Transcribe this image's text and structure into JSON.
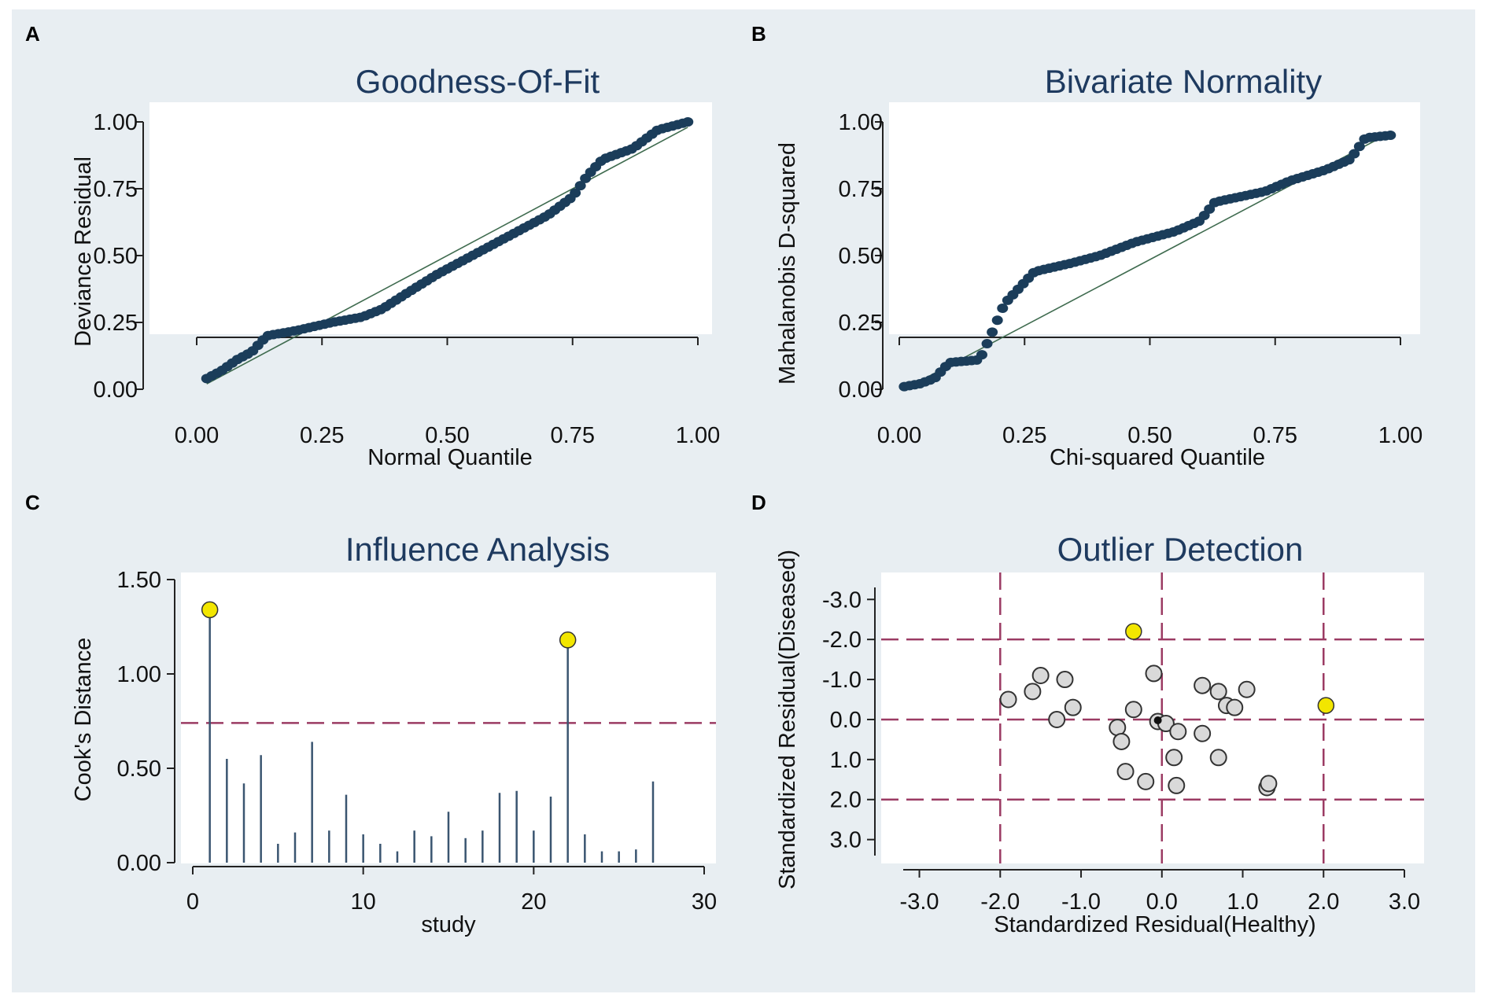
{
  "figure": {
    "background": "#e8eef2",
    "plot_background": "#ffffff",
    "colors": {
      "marker": "#1b3d5a",
      "fit_line": "#3f6b4f",
      "ref_line": "#9b3b63",
      "stem": "#3a5570",
      "highlight": "#f2e600",
      "hollow_fill": "#d9d9d9",
      "title": "#1e3a5f"
    }
  },
  "chart_data": [
    {
      "panel": "A",
      "type": "scatter",
      "title": "Goodness-Of-Fit",
      "xlabel": "Normal Quantile",
      "ylabel": "Deviance Residual",
      "xlim": [
        0,
        1
      ],
      "ylim": [
        0,
        1
      ],
      "xticks": [
        "0.00",
        "0.25",
        "0.50",
        "0.75",
        "1.00"
      ],
      "yticks": [
        "0.00",
        "0.25",
        "0.50",
        "0.75",
        "1.00"
      ],
      "xtick_values": [
        0,
        0.25,
        0.5,
        0.75,
        1
      ],
      "ytick_values": [
        0,
        0.25,
        0.5,
        0.75,
        1
      ],
      "fit_line": [
        [
          0.02,
          0.02
        ],
        [
          0.98,
          0.98
        ]
      ],
      "profile": [
        [
          0.02,
          0.04
        ],
        [
          0.05,
          0.07
        ],
        [
          0.08,
          0.11
        ],
        [
          0.11,
          0.14
        ],
        [
          0.14,
          0.2
        ],
        [
          0.2,
          0.22
        ],
        [
          0.27,
          0.25
        ],
        [
          0.33,
          0.27
        ],
        [
          0.37,
          0.3
        ],
        [
          0.42,
          0.36
        ],
        [
          0.48,
          0.43
        ],
        [
          0.56,
          0.51
        ],
        [
          0.63,
          0.58
        ],
        [
          0.7,
          0.65
        ],
        [
          0.75,
          0.72
        ],
        [
          0.78,
          0.8
        ],
        [
          0.81,
          0.86
        ],
        [
          0.87,
          0.9
        ],
        [
          0.92,
          0.97
        ],
        [
          0.98,
          1.0
        ]
      ],
      "n_points": 95
    },
    {
      "panel": "B",
      "type": "scatter",
      "title": "Bivariate Normality",
      "xlabel": "Chi-squared Quantile",
      "ylabel": "Mahalanobis D-squared",
      "xlim": [
        0,
        1
      ],
      "ylim": [
        0,
        1
      ],
      "xticks": [
        "0.00",
        "0.25",
        "0.50",
        "0.75",
        "1.00"
      ],
      "yticks": [
        "0.00",
        "0.25",
        "0.50",
        "0.75",
        "1.00"
      ],
      "xtick_values": [
        0,
        0.25,
        0.5,
        0.75,
        1
      ],
      "ytick_values": [
        0,
        0.25,
        0.5,
        0.75,
        1
      ],
      "fit_line": [
        [
          0.02,
          0.01
        ],
        [
          0.97,
          0.95
        ]
      ],
      "profile": [
        [
          0.01,
          0.01
        ],
        [
          0.04,
          0.02
        ],
        [
          0.07,
          0.04
        ],
        [
          0.1,
          0.1
        ],
        [
          0.16,
          0.11
        ],
        [
          0.18,
          0.19
        ],
        [
          0.21,
          0.32
        ],
        [
          0.27,
          0.44
        ],
        [
          0.34,
          0.47
        ],
        [
          0.4,
          0.5
        ],
        [
          0.47,
          0.55
        ],
        [
          0.55,
          0.59
        ],
        [
          0.6,
          0.63
        ],
        [
          0.63,
          0.7
        ],
        [
          0.73,
          0.74
        ],
        [
          0.78,
          0.78
        ],
        [
          0.85,
          0.82
        ],
        [
          0.9,
          0.86
        ],
        [
          0.93,
          0.94
        ],
        [
          0.98,
          0.95
        ]
      ],
      "n_points": 95
    },
    {
      "panel": "C",
      "type": "stem",
      "title": "Influence Analysis",
      "xlabel": "study",
      "ylabel": "Cook's Distance",
      "xlim": [
        0,
        30
      ],
      "ylim": [
        0,
        1.5
      ],
      "xticks": [
        "0",
        "10",
        "20",
        "30"
      ],
      "yticks": [
        "0.00",
        "0.50",
        "1.00",
        "1.50"
      ],
      "xtick_values": [
        0,
        10,
        20,
        30
      ],
      "ytick_values": [
        0,
        0.5,
        1,
        1.5
      ],
      "threshold": 0.74,
      "studies": [
        1,
        2,
        3,
        4,
        5,
        6,
        7,
        8,
        9,
        10,
        11,
        12,
        13,
        14,
        15,
        16,
        17,
        18,
        19,
        20,
        21,
        22,
        23,
        24,
        25,
        26,
        27
      ],
      "values": [
        1.34,
        0.55,
        0.42,
        0.57,
        0.1,
        0.16,
        0.64,
        0.17,
        0.36,
        0.15,
        0.1,
        0.06,
        0.17,
        0.14,
        0.27,
        0.13,
        0.17,
        0.37,
        0.38,
        0.17,
        0.35,
        1.18,
        0.15,
        0.06,
        0.06,
        0.07,
        0.43
      ],
      "highlighted": [
        1,
        22
      ]
    },
    {
      "panel": "D",
      "type": "scatter",
      "title": "Outlier Detection",
      "xlabel": "Standardized Residual(Healthy)",
      "ylabel": "Standardized Residual(Diseased)",
      "xlim": [
        -3.2,
        3.0
      ],
      "ylim": [
        -3.3,
        3.4
      ],
      "xticks": [
        "-3.0",
        "-2.0",
        "-1.0",
        "0.0",
        "1.0",
        "2.0",
        "3.0"
      ],
      "yticks": [
        "3.0",
        "2.0",
        "1.0",
        "0.0",
        "-1.0",
        "-2.0",
        "-3.0"
      ],
      "xtick_values": [
        -3,
        -2,
        -1,
        0,
        1,
        2,
        3
      ],
      "ytick_values": [
        3,
        2,
        1,
        0,
        -1,
        -2,
        -3
      ],
      "ref_x": [
        -2,
        0,
        2
      ],
      "ref_y": [
        -2,
        0,
        2
      ],
      "points": [
        [
          -1.9,
          -0.5
        ],
        [
          -1.6,
          -0.7
        ],
        [
          -1.5,
          -1.1
        ],
        [
          -1.3,
          0.0
        ],
        [
          -1.2,
          -1.0
        ],
        [
          -1.1,
          -0.3
        ],
        [
          -0.55,
          0.2
        ],
        [
          -0.5,
          0.55
        ],
        [
          -0.45,
          1.3
        ],
        [
          -0.35,
          -0.25
        ],
        [
          -0.2,
          1.55
        ],
        [
          -0.1,
          -1.15
        ],
        [
          -0.05,
          0.05
        ],
        [
          0.05,
          0.1
        ],
        [
          0.15,
          0.95
        ],
        [
          0.18,
          1.65
        ],
        [
          0.2,
          0.3
        ],
        [
          0.5,
          0.35
        ],
        [
          0.5,
          -0.85
        ],
        [
          0.7,
          0.95
        ],
        [
          0.7,
          -0.7
        ],
        [
          0.8,
          -0.35
        ],
        [
          0.9,
          -0.3
        ],
        [
          1.05,
          -0.75
        ],
        [
          1.3,
          1.7
        ],
        [
          1.32,
          1.6
        ]
      ],
      "outliers": [
        [
          -0.35,
          -2.2
        ],
        [
          2.03,
          -0.35
        ]
      ]
    }
  ]
}
